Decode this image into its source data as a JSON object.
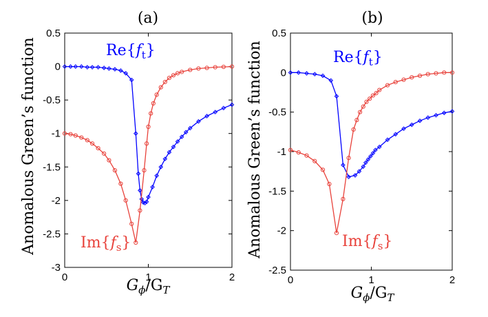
{
  "chart_data": [
    {
      "panel_label": "(a)",
      "type": "line",
      "xlabel": "Gϕ/GT",
      "ylabel": "Anomalous Green’s function",
      "xlim": [
        0,
        2
      ],
      "ylim": [
        -3,
        0.5
      ],
      "xticks": [
        0,
        1,
        2
      ],
      "yticks": [
        0.5,
        0,
        -0.5,
        -1,
        -1.5,
        -2,
        -2.5,
        -3
      ],
      "ytick_labels": [
        "0.5",
        "0",
        "-0.5",
        "-1",
        "-1.5",
        "-2",
        "-2.5",
        "-3"
      ],
      "series": [
        {
          "name": "Re{ft}",
          "color": "#0000ff",
          "marker": "diamond",
          "x": [
            0,
            0.07,
            0.13,
            0.2,
            0.27,
            0.33,
            0.4,
            0.47,
            0.53,
            0.6,
            0.67,
            0.73,
            0.8,
            0.85,
            0.88,
            0.9,
            0.92,
            0.94,
            0.96,
            0.98,
            1.0,
            1.05,
            1.1,
            1.15,
            1.2,
            1.25,
            1.3,
            1.35,
            1.4,
            1.45,
            1.5,
            1.6,
            1.7,
            1.8,
            1.9,
            2.0
          ],
          "y": [
            0,
            0,
            0,
            0,
            -0.01,
            -0.01,
            -0.01,
            -0.02,
            -0.03,
            -0.04,
            -0.06,
            -0.1,
            -0.2,
            -1.0,
            -1.6,
            -1.85,
            -1.98,
            -2.03,
            -2.04,
            -2.02,
            -1.95,
            -1.8,
            -1.63,
            -1.5,
            -1.38,
            -1.28,
            -1.2,
            -1.12,
            -1.05,
            -0.98,
            -0.92,
            -0.82,
            -0.74,
            -0.68,
            -0.62,
            -0.57
          ]
        },
        {
          "name": "Im{fs}",
          "color": "#e8413a",
          "marker": "circle",
          "x": [
            0,
            0.07,
            0.13,
            0.2,
            0.27,
            0.33,
            0.4,
            0.47,
            0.53,
            0.6,
            0.67,
            0.73,
            0.8,
            0.85,
            0.9,
            0.95,
            0.98,
            1.0,
            1.03,
            1.06,
            1.1,
            1.15,
            1.2,
            1.25,
            1.3,
            1.35,
            1.4,
            1.5,
            1.6,
            1.7,
            1.8,
            1.9,
            2.0
          ],
          "y": [
            -1.0,
            -1.01,
            -1.03,
            -1.06,
            -1.1,
            -1.15,
            -1.22,
            -1.3,
            -1.4,
            -1.55,
            -1.75,
            -2.0,
            -2.35,
            -2.63,
            -2.15,
            -1.55,
            -1.15,
            -0.9,
            -0.7,
            -0.55,
            -0.42,
            -0.31,
            -0.23,
            -0.17,
            -0.13,
            -0.1,
            -0.08,
            -0.05,
            -0.03,
            -0.02,
            -0.01,
            -0.005,
            0
          ]
        }
      ],
      "annotations": [
        {
          "text": "Re{ft}",
          "color": "#0000ff"
        },
        {
          "text": "Im{fs}",
          "color": "#e8413a"
        }
      ]
    },
    {
      "panel_label": "(b)",
      "type": "line",
      "xlabel": "Gϕ/GT",
      "ylabel": "Anomalous Green’s function",
      "xlim": [
        0,
        2
      ],
      "ylim": [
        -2.5,
        0.5
      ],
      "xticks": [
        0,
        1,
        2
      ],
      "yticks": [
        0.5,
        0,
        -0.5,
        -1,
        -1.5,
        -2,
        -2.5
      ],
      "ytick_labels": [
        "0.5",
        "0",
        "-0.5",
        "-1",
        "-1.5",
        "-2",
        "-2.5"
      ],
      "series": [
        {
          "name": "Re{ft}",
          "color": "#0000ff",
          "marker": "diamond",
          "x": [
            0,
            0.1,
            0.2,
            0.3,
            0.4,
            0.5,
            0.57,
            0.65,
            0.72,
            0.8,
            0.85,
            0.9,
            0.93,
            0.96,
            0.99,
            1.02,
            1.05,
            1.1,
            1.2,
            1.3,
            1.4,
            1.5,
            1.6,
            1.7,
            1.8,
            1.9,
            2.0
          ],
          "y": [
            0,
            0,
            -0.01,
            -0.02,
            -0.04,
            -0.1,
            -0.3,
            -1.17,
            -1.32,
            -1.3,
            -1.25,
            -1.19,
            -1.14,
            -1.1,
            -1.06,
            -1.02,
            -0.98,
            -0.94,
            -0.85,
            -0.78,
            -0.71,
            -0.66,
            -0.61,
            -0.57,
            -0.54,
            -0.51,
            -0.49
          ]
        },
        {
          "name": "Im{fs}",
          "color": "#e8413a",
          "marker": "circle",
          "x": [
            0,
            0.1,
            0.2,
            0.3,
            0.4,
            0.48,
            0.57,
            0.65,
            0.72,
            0.78,
            0.82,
            0.86,
            0.9,
            0.94,
            0.98,
            1.02,
            1.06,
            1.1,
            1.2,
            1.3,
            1.4,
            1.5,
            1.6,
            1.7,
            1.8,
            1.9,
            2.0
          ],
          "y": [
            -0.98,
            -1.01,
            -1.05,
            -1.12,
            -1.23,
            -1.41,
            -2.03,
            -1.6,
            -1.08,
            -0.72,
            -0.6,
            -0.5,
            -0.43,
            -0.37,
            -0.33,
            -0.29,
            -0.26,
            -0.22,
            -0.16,
            -0.12,
            -0.09,
            -0.06,
            -0.04,
            -0.02,
            -0.01,
            0,
            0
          ]
        }
      ],
      "annotations": [
        {
          "text": "Re{ft}",
          "color": "#0000ff"
        },
        {
          "text": "Im{fs}",
          "color": "#e8413a"
        }
      ]
    }
  ]
}
